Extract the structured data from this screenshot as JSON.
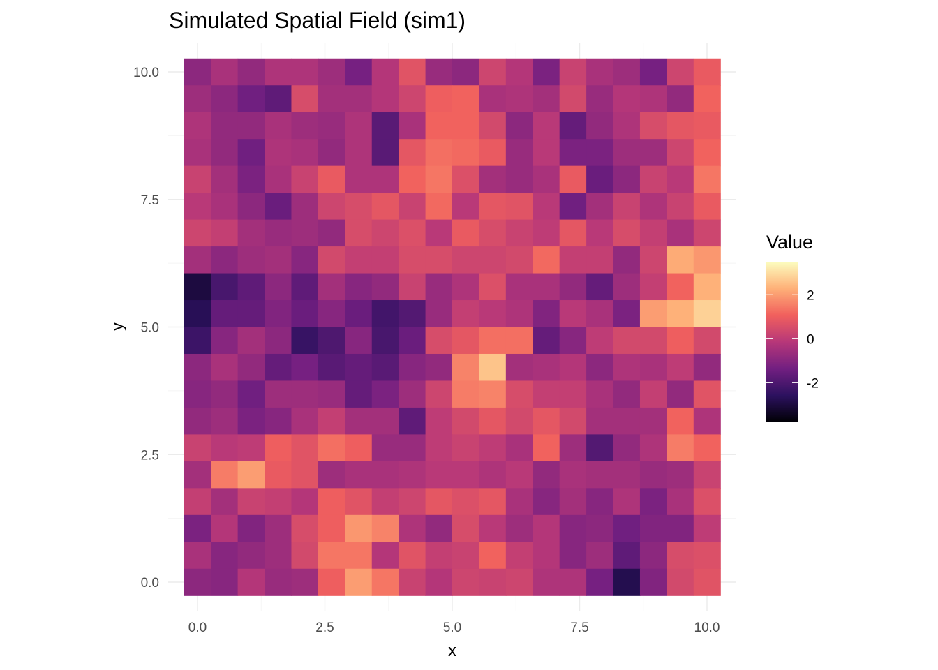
{
  "chart_data": {
    "type": "heatmap",
    "title": "Simulated Spatial Field (sim1)",
    "xlabel": "x",
    "ylabel": "y",
    "xlim": [
      0,
      10
    ],
    "ylim": [
      0,
      10
    ],
    "x_ticks": [
      "0.0",
      "2.5",
      "5.0",
      "7.5",
      "10.0"
    ],
    "y_ticks": [
      "0.0",
      "2.5",
      "5.0",
      "7.5",
      "10.0"
    ],
    "grid": true,
    "colorscale": "magma",
    "color_stops": [
      "#000004",
      "#2c115f",
      "#721f81",
      "#b73779",
      "#f1605d",
      "#feb078",
      "#fcfdbf"
    ],
    "legend": {
      "title": "Value",
      "position": "right",
      "range": [
        -3.8,
        3.5
      ],
      "ticks": [
        "2",
        "0",
        "-2"
      ]
    },
    "grid_resolution": [
      20,
      20
    ],
    "values": [
      [
        -0.9,
        -0.4,
        -0.8,
        -0.3,
        -0.3,
        -0.6,
        -1.3,
        -0.2,
        0.7,
        -0.7,
        -0.9,
        0.3,
        -0.2,
        -1.2,
        0.2,
        -0.4,
        -0.6,
        -1.3,
        0.3,
        0.9
      ],
      [
        -0.6,
        -0.9,
        -1.4,
        -1.7,
        0.5,
        -0.5,
        -0.5,
        -0.2,
        0.3,
        1.0,
        1.1,
        -0.4,
        -0.3,
        -0.5,
        0.4,
        -0.7,
        -0.2,
        -0.3,
        -0.8,
        1.1
      ],
      [
        -0.3,
        -0.8,
        -0.8,
        -0.4,
        -0.6,
        -0.7,
        -0.3,
        -1.8,
        -0.4,
        1.1,
        1.1,
        0.4,
        -0.9,
        -0.1,
        -1.6,
        -0.8,
        -0.3,
        0.5,
        0.8,
        0.9
      ],
      [
        -0.4,
        -0.8,
        -1.4,
        -0.3,
        -0.4,
        -0.8,
        -0.3,
        -1.8,
        0.8,
        1.3,
        1.2,
        0.9,
        -0.7,
        -0.1,
        -1.2,
        -1.2,
        -0.6,
        -0.6,
        0.3,
        1.1
      ],
      [
        0.2,
        -0.5,
        -1.2,
        -0.4,
        0.2,
        0.9,
        -0.3,
        -0.3,
        1.1,
        1.4,
        0.6,
        -0.5,
        -0.7,
        -0.4,
        0.9,
        -1.5,
        -0.9,
        0.2,
        -0.1,
        1.4
      ],
      [
        -0.1,
        -0.4,
        -0.9,
        -1.5,
        -0.6,
        0.3,
        0.5,
        0.8,
        0.2,
        1.2,
        -0.1,
        0.8,
        0.7,
        -0.1,
        -1.4,
        -0.5,
        0.2,
        -0.3,
        0.2,
        0.9
      ],
      [
        0.3,
        0.1,
        -0.5,
        -0.7,
        -0.6,
        -0.8,
        0.5,
        0.3,
        0.6,
        -0.1,
        0.9,
        0.5,
        0.2,
        0.0,
        0.8,
        -0.1,
        0.5,
        0.1,
        -0.4,
        0.3
      ],
      [
        -0.5,
        -0.9,
        -0.6,
        -0.5,
        -1.0,
        0.4,
        0.1,
        0.1,
        0.5,
        0.5,
        0.3,
        0.3,
        0.4,
        1.2,
        0.1,
        0.1,
        -0.8,
        0.3,
        2.2,
        1.9
      ],
      [
        -3.0,
        -2.1,
        -1.7,
        -0.9,
        -1.7,
        -0.5,
        -1.0,
        -0.8,
        0.2,
        -0.7,
        -0.3,
        0.6,
        -0.4,
        -0.4,
        -0.8,
        -1.6,
        -0.6,
        0.1,
        1.1,
        2.3
      ],
      [
        -2.7,
        -1.6,
        -1.6,
        -1.1,
        -1.5,
        -1.0,
        -1.5,
        -2.2,
        -1.9,
        -0.7,
        0.1,
        -0.1,
        -0.3,
        -1.1,
        -0.1,
        -0.4,
        -1.2,
        2.0,
        2.3,
        2.8
      ],
      [
        -2.3,
        -1.0,
        -0.5,
        -0.9,
        -2.4,
        -2.0,
        -1.0,
        -2.1,
        -1.5,
        0.5,
        0.8,
        1.3,
        1.3,
        -1.6,
        -1.0,
        0.0,
        0.4,
        0.4,
        1.0,
        0.4
      ],
      [
        -0.9,
        -0.4,
        -0.8,
        -1.6,
        -1.3,
        -1.8,
        -1.6,
        -1.8,
        -1.0,
        -0.8,
        1.6,
        2.6,
        -0.5,
        -0.4,
        -0.2,
        -0.9,
        -0.3,
        -0.4,
        0.0,
        -0.8
      ],
      [
        -1.0,
        -0.8,
        -1.4,
        -0.6,
        -0.6,
        -0.7,
        -1.6,
        -1.2,
        -0.6,
        0.3,
        1.5,
        1.6,
        0.5,
        0.1,
        0.1,
        -0.4,
        -0.8,
        0.1,
        -0.8,
        0.7
      ],
      [
        -0.8,
        -0.6,
        -1.2,
        -1.0,
        -0.4,
        0.1,
        -0.5,
        -0.5,
        -1.7,
        0.0,
        0.4,
        0.8,
        0.4,
        0.8,
        0.4,
        -0.5,
        -0.5,
        -0.5,
        1.1,
        -0.3
      ],
      [
        0.2,
        -0.1,
        0.0,
        1.0,
        0.7,
        1.3,
        1.0,
        -0.7,
        -0.7,
        0.0,
        0.2,
        0.0,
        -0.4,
        1.1,
        -0.6,
        -1.9,
        -0.8,
        -0.3,
        1.5,
        1.1
      ],
      [
        -0.5,
        1.5,
        2.0,
        0.9,
        0.7,
        -0.6,
        -0.4,
        -0.4,
        -0.3,
        -0.1,
        -0.1,
        -0.3,
        -0.1,
        -0.8,
        -0.4,
        -0.5,
        -0.5,
        -0.7,
        -0.6,
        0.2
      ],
      [
        0.1,
        -0.5,
        0.2,
        0.1,
        -0.2,
        1.0,
        0.7,
        0.1,
        0.3,
        0.8,
        0.6,
        0.8,
        -0.4,
        -1.0,
        -0.5,
        -1.0,
        -0.3,
        -1.2,
        -0.4,
        0.6
      ],
      [
        -1.2,
        -0.2,
        -1.1,
        -0.6,
        0.5,
        1.0,
        1.9,
        1.6,
        -0.3,
        -0.8,
        0.5,
        -0.1,
        -0.6,
        -0.2,
        -1.0,
        -0.9,
        -1.4,
        -1.1,
        -1.1,
        0.0
      ],
      [
        -0.4,
        -1.0,
        -0.8,
        -0.6,
        0.4,
        1.4,
        1.4,
        -0.2,
        0.7,
        0.1,
        0.2,
        1.1,
        0.1,
        -0.2,
        -1.0,
        -0.6,
        -1.7,
        -0.9,
        0.5,
        0.6
      ],
      [
        -0.9,
        -1.0,
        -0.2,
        -0.7,
        -0.6,
        1.0,
        2.0,
        1.4,
        0.2,
        -0.2,
        0.3,
        0.2,
        0.3,
        -0.3,
        -0.3,
        -1.3,
        -2.8,
        -1.1,
        0.4,
        0.7
      ]
    ]
  }
}
